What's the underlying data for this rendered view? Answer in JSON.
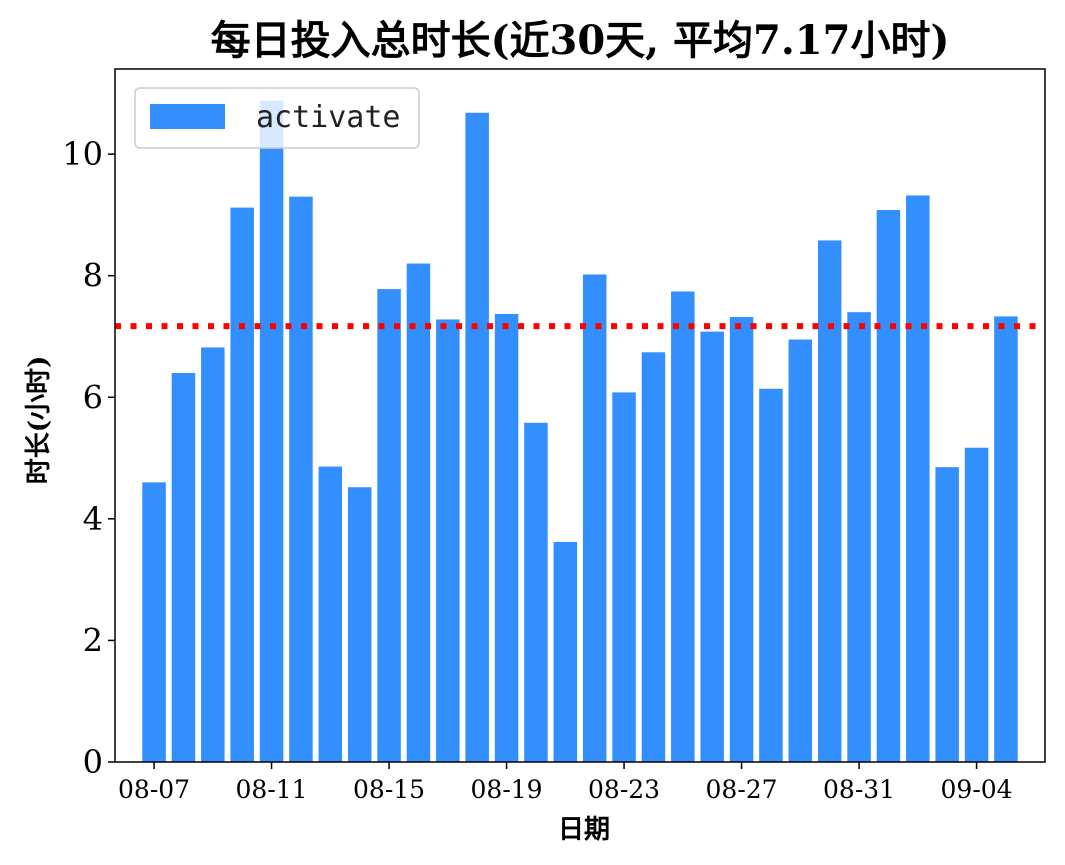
{
  "chart_data": {
    "type": "bar",
    "title": "每日投入总时长(近30天, 平均7.17小时)",
    "xlabel": "日期",
    "ylabel": "时长(小时)",
    "ylim": [
      0,
      11.4
    ],
    "yticks": [
      0,
      2,
      4,
      6,
      8,
      10
    ],
    "xtick_labels": [
      "08-07",
      "08-11",
      "08-15",
      "08-19",
      "08-23",
      "08-27",
      "08-31",
      "09-04"
    ],
    "xtick_indices": [
      0,
      4,
      8,
      12,
      16,
      20,
      24,
      28
    ],
    "categories": [
      "08-07",
      "08-08",
      "08-09",
      "08-10",
      "08-11",
      "08-12",
      "08-13",
      "08-14",
      "08-15",
      "08-16",
      "08-17",
      "08-18",
      "08-19",
      "08-20",
      "08-21",
      "08-22",
      "08-23",
      "08-24",
      "08-25",
      "08-26",
      "08-27",
      "08-28",
      "08-29",
      "08-30",
      "08-31",
      "09-01",
      "09-02",
      "09-03",
      "09-04",
      "09-05"
    ],
    "series": [
      {
        "name": "activate",
        "color": "#338ffe",
        "values": [
          4.6,
          6.4,
          6.82,
          9.12,
          10.88,
          9.3,
          4.86,
          4.52,
          7.78,
          8.2,
          7.28,
          10.68,
          7.37,
          5.58,
          3.62,
          8.02,
          6.08,
          6.74,
          7.74,
          7.08,
          7.32,
          6.14,
          6.95,
          8.58,
          7.4,
          9.08,
          9.32,
          4.85,
          5.17,
          7.33
        ]
      }
    ],
    "average": {
      "value": 7.17,
      "color": "#ff0000",
      "style": "dotted"
    },
    "legend": {
      "position": "top-left"
    },
    "grid": false
  }
}
